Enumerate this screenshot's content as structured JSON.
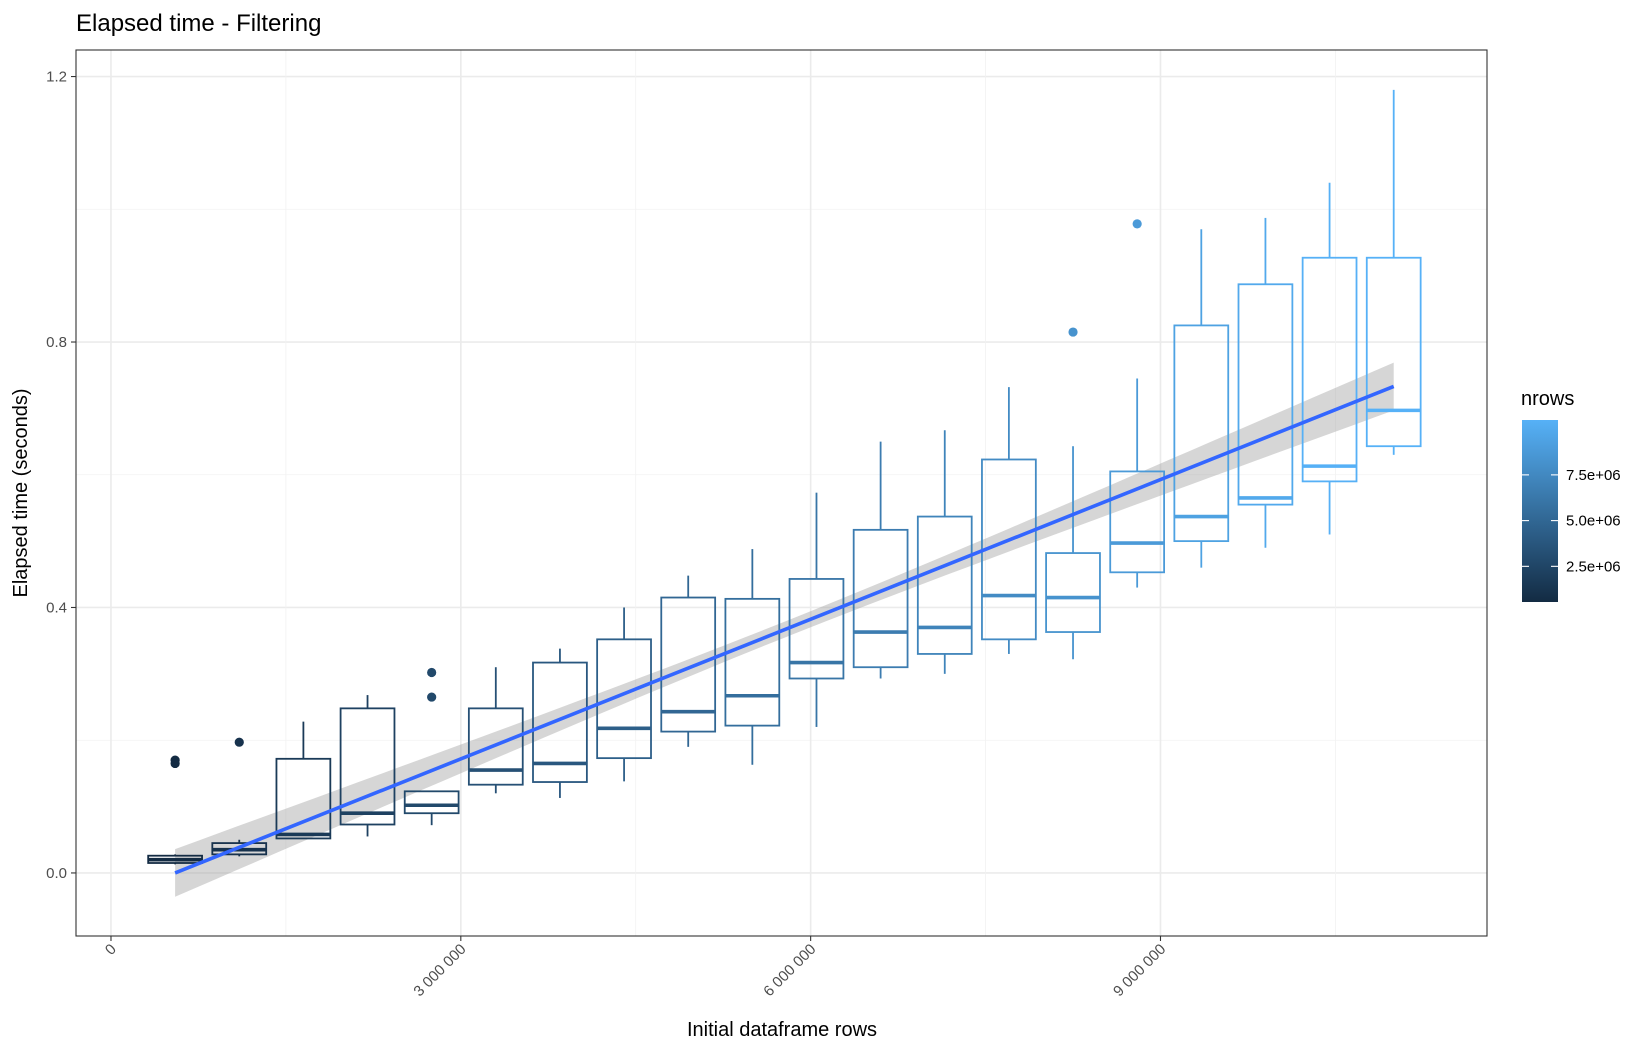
{
  "chart_data": {
    "type": "box",
    "title": "Elapsed time - Filtering",
    "xlabel": "Initial dataframe rows",
    "ylabel": "Elapsed time (seconds)",
    "xlim": [
      -300000,
      11800000
    ],
    "ylim": [
      -0.095,
      1.24
    ],
    "x_ticks": [
      {
        "value": 0,
        "label": "0"
      },
      {
        "value": 3000000,
        "label": "3 000 000"
      },
      {
        "value": 6000000,
        "label": "6 000 000"
      },
      {
        "value": 9000000,
        "label": "9 000 000"
      }
    ],
    "y_ticks": [
      {
        "value": 0.0,
        "label": "0.0"
      },
      {
        "value": 0.4,
        "label": "0.4"
      },
      {
        "value": 0.8,
        "label": "0.8"
      },
      {
        "value": 1.2,
        "label": "1.2"
      }
    ],
    "grid": true,
    "legend": {
      "title": "nrows",
      "position": "right",
      "type": "colorbar",
      "range": [
        550000,
        10500000
      ],
      "color_low": "#132B43",
      "color_high": "#56B1F7",
      "ticks": [
        {
          "value": 2500000,
          "label": "2.5e+06"
        },
        {
          "value": 5000000,
          "label": "5.0e+06"
        },
        {
          "value": 7500000,
          "label": "7.5e+06"
        }
      ]
    },
    "boxes": [
      {
        "x": 550000,
        "ymin": 0.013,
        "q1": 0.015,
        "median": 0.02,
        "q3": 0.026,
        "ymax": 0.028,
        "outliers": [
          0.17,
          0.165
        ]
      },
      {
        "x": 1100000,
        "ymin": 0.025,
        "q1": 0.028,
        "median": 0.035,
        "q3": 0.045,
        "ymax": 0.05,
        "outliers": [
          0.197
        ]
      },
      {
        "x": 1650000,
        "ymin": 0.052,
        "q1": 0.052,
        "median": 0.058,
        "q3": 0.172,
        "ymax": 0.228,
        "outliers": []
      },
      {
        "x": 2200000,
        "ymin": 0.055,
        "q1": 0.073,
        "median": 0.09,
        "q3": 0.248,
        "ymax": 0.268,
        "outliers": []
      },
      {
        "x": 2750000,
        "ymin": 0.072,
        "q1": 0.09,
        "median": 0.102,
        "q3": 0.123,
        "ymax": 0.123,
        "outliers": [
          0.302,
          0.265
        ]
      },
      {
        "x": 3300000,
        "ymin": 0.12,
        "q1": 0.133,
        "median": 0.155,
        "q3": 0.248,
        "ymax": 0.31,
        "outliers": []
      },
      {
        "x": 3850000,
        "ymin": 0.113,
        "q1": 0.137,
        "median": 0.165,
        "q3": 0.317,
        "ymax": 0.338,
        "outliers": []
      },
      {
        "x": 4400000,
        "ymin": 0.138,
        "q1": 0.173,
        "median": 0.218,
        "q3": 0.352,
        "ymax": 0.4,
        "outliers": []
      },
      {
        "x": 4950000,
        "ymin": 0.19,
        "q1": 0.213,
        "median": 0.243,
        "q3": 0.415,
        "ymax": 0.448,
        "outliers": []
      },
      {
        "x": 5500000,
        "ymin": 0.163,
        "q1": 0.222,
        "median": 0.267,
        "q3": 0.413,
        "ymax": 0.488,
        "outliers": []
      },
      {
        "x": 6050000,
        "ymin": 0.22,
        "q1": 0.293,
        "median": 0.317,
        "q3": 0.443,
        "ymax": 0.573,
        "outliers": []
      },
      {
        "x": 6600000,
        "ymin": 0.293,
        "q1": 0.31,
        "median": 0.363,
        "q3": 0.517,
        "ymax": 0.65,
        "outliers": []
      },
      {
        "x": 7150000,
        "ymin": 0.3,
        "q1": 0.33,
        "median": 0.37,
        "q3": 0.537,
        "ymax": 0.667,
        "outliers": []
      },
      {
        "x": 7700000,
        "ymin": 0.33,
        "q1": 0.352,
        "median": 0.418,
        "q3": 0.623,
        "ymax": 0.732,
        "outliers": []
      },
      {
        "x": 8250000,
        "ymin": 0.322,
        "q1": 0.363,
        "median": 0.415,
        "q3": 0.482,
        "ymax": 0.643,
        "outliers": [
          0.815
        ]
      },
      {
        "x": 8800000,
        "ymin": 0.43,
        "q1": 0.453,
        "median": 0.497,
        "q3": 0.605,
        "ymax": 0.745,
        "outliers": [
          0.978
        ]
      },
      {
        "x": 9350000,
        "ymin": 0.46,
        "q1": 0.5,
        "median": 0.537,
        "q3": 0.825,
        "ymax": 0.97,
        "outliers": []
      },
      {
        "x": 9900000,
        "ymin": 0.49,
        "q1": 0.555,
        "median": 0.565,
        "q3": 0.887,
        "ymax": 0.987,
        "outliers": []
      },
      {
        "x": 10450000,
        "ymin": 0.51,
        "q1": 0.59,
        "median": 0.613,
        "q3": 0.927,
        "ymax": 1.04,
        "outliers": []
      },
      {
        "x": 11000000,
        "ymin": 0.63,
        "q1": 0.643,
        "median": 0.697,
        "q3": 0.927,
        "ymax": 1.18,
        "outliers": []
      }
    ],
    "trend": {
      "method": "linear",
      "color": "#3366FF",
      "x_range": [
        550000,
        11000000
      ],
      "y_start": 0.0,
      "y_end": 0.733,
      "band_halfwidth_start": 0.036,
      "band_halfwidth_mid": 0.012,
      "band_halfwidth_end": 0.036
    }
  }
}
